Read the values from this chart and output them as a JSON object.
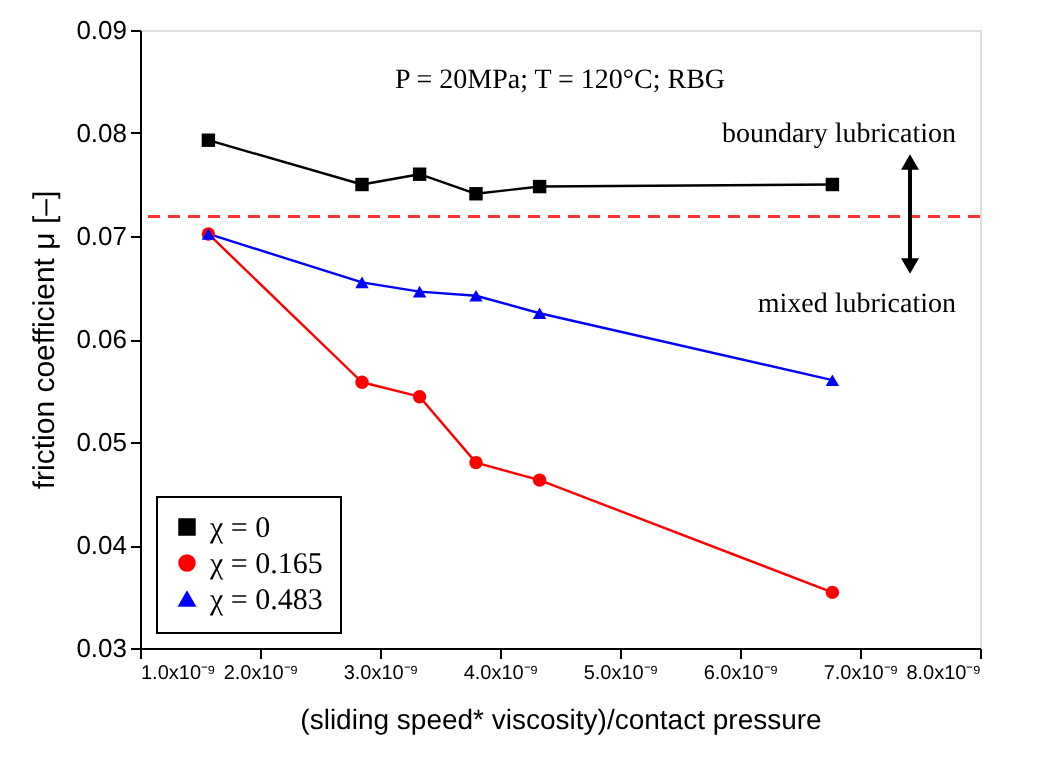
{
  "chart_data": {
    "type": "line",
    "annotations": [
      "P = 20MPa; T = 120°C; RBG",
      "boundary lubrication",
      "mixed lubrication"
    ],
    "xlabel": "(sliding speed* viscosity)/contact pressure",
    "ylabel": "friction coefficient μ [–]",
    "series": [
      {
        "name": "χ = 0",
        "color": "#000000",
        "marker": "square",
        "x": [
          1.57e-09,
          2.85e-09,
          3.33e-09,
          3.8e-09,
          4.33e-09,
          6.77e-09
        ],
        "values": [
          0.0793,
          0.075,
          0.076,
          0.0741,
          0.0748,
          0.075
        ]
      },
      {
        "name": "χ = 0.165",
        "color": "#ff0000",
        "marker": "circle",
        "x": [
          1.57e-09,
          2.85e-09,
          3.33e-09,
          3.8e-09,
          4.33e-09,
          6.77e-09
        ],
        "values": [
          0.0702,
          0.0558,
          0.0544,
          0.048,
          0.0463,
          0.0354
        ]
      },
      {
        "name": "χ = 0.483",
        "color": "#0000ff",
        "marker": "triangle",
        "x": [
          1.57e-09,
          2.85e-09,
          3.33e-09,
          3.8e-09,
          4.33e-09,
          6.77e-09
        ],
        "values": [
          0.0702,
          0.0655,
          0.0646,
          0.0642,
          0.0625,
          0.056
        ]
      }
    ],
    "xlim": [
      1e-09,
      8e-09
    ],
    "xticks": [
      {
        "value": 1e-09,
        "label": "1.0x10⁻⁹"
      },
      {
        "value": 2e-09,
        "label": "2.0x10⁻⁹"
      },
      {
        "value": 3e-09,
        "label": "3.0x10⁻⁹"
      },
      {
        "value": 4e-09,
        "label": "4.0x10⁻⁹"
      },
      {
        "value": 5e-09,
        "label": "5.0x10⁻⁹"
      },
      {
        "value": 6e-09,
        "label": "6.0x10⁻⁹"
      },
      {
        "value": 7e-09,
        "label": "7.0x10⁻⁹"
      },
      {
        "value": 8e-09,
        "label": "8.0x10⁻⁹"
      }
    ],
    "ylim": [
      0.03,
      0.09
    ],
    "yticks": [
      0.03,
      0.04,
      0.05,
      0.06,
      0.07,
      0.08,
      0.09
    ],
    "ref_lines": [
      {
        "axis": "y",
        "value": 0.0719,
        "color": "#ff3333",
        "line_style": "dashed"
      }
    ],
    "legend": "bottom left",
    "line_style": "solid"
  }
}
